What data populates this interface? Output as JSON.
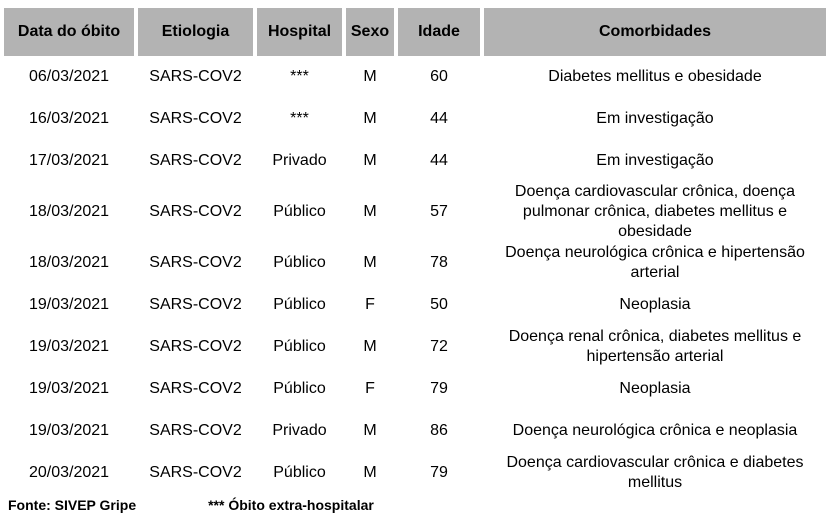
{
  "table": {
    "columns": [
      "Data do óbito",
      "Etiologia",
      "Hospital",
      "Sexo",
      "Idade",
      "Comorbidades"
    ],
    "rows": [
      [
        "06/03/2021",
        "SARS-COV2",
        "***",
        "M",
        "60",
        "Diabetes mellitus e obesidade"
      ],
      [
        "16/03/2021",
        "SARS-COV2",
        "***",
        "M",
        "44",
        "Em investigação"
      ],
      [
        "17/03/2021",
        "SARS-COV2",
        "Privado",
        "M",
        "44",
        "Em investigação"
      ],
      [
        "18/03/2021",
        "SARS-COV2",
        "Público",
        "M",
        "57",
        "Doença cardiovascular crônica, doença\npulmonar crônica, diabetes mellitus e\nobesidade"
      ],
      [
        "18/03/2021",
        "SARS-COV2",
        "Público",
        "M",
        "78",
        "Doença neurológica crônica e hipertensão\narterial"
      ],
      [
        "19/03/2021",
        "SARS-COV2",
        "Público",
        "F",
        "50",
        "Neoplasia"
      ],
      [
        "19/03/2021",
        "SARS-COV2",
        "Público",
        "M",
        "72",
        "Doença renal crônica, diabetes mellitus e\nhipertensão arterial"
      ],
      [
        "19/03/2021",
        "SARS-COV2",
        "Público",
        "F",
        "79",
        "Neoplasia"
      ],
      [
        "19/03/2021",
        "SARS-COV2",
        "Privado",
        "M",
        "86",
        "Doença neurológica crônica e neoplasia"
      ],
      [
        "20/03/2021",
        "SARS-COV2",
        "Público",
        "M",
        "79",
        "Doença cardiovascular crônica e  diabetes\nmellitus"
      ]
    ]
  },
  "footer": {
    "source_label": "Fonte: SIVEP Gripe",
    "note_label": "*** Óbito extra-hospitalar"
  },
  "colors": {
    "header_bg": "#b3b3b3",
    "text": "#000000",
    "background": "#ffffff"
  }
}
